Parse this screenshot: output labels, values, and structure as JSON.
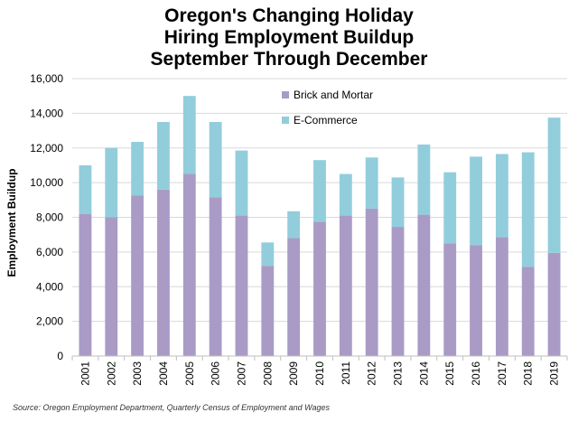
{
  "title_lines": [
    "Oregon's Changing Holiday",
    "Hiring Employment Buildup",
    "September Through December"
  ],
  "source": "Source: Oregon Employment Department, Quarterly Census of Employment and Wages",
  "colors": {
    "brick": "#a99bc6",
    "ecommerce": "#92cddc",
    "grid": "#d9d9d9",
    "axis": "#bfbfbf"
  },
  "chart_data": {
    "type": "bar",
    "stacked": true,
    "title": "Oregon's Changing Holiday Hiring Employment Buildup September Through December",
    "xlabel": "",
    "ylabel": "Employment Buildup",
    "ylim": [
      0,
      16000
    ],
    "yticks": [
      0,
      2000,
      4000,
      6000,
      8000,
      10000,
      12000,
      14000,
      16000
    ],
    "ytick_labels": [
      "0",
      "2,000",
      "4,000",
      "6,000",
      "8,000",
      "10,000",
      "12,000",
      "14,000",
      "16,000"
    ],
    "grid": true,
    "legend_position": "top-center",
    "categories": [
      "2001",
      "2002",
      "2003",
      "2004",
      "2005",
      "2006",
      "2007",
      "2008",
      "2009",
      "2010",
      "2011",
      "2012",
      "2013",
      "2014",
      "2015",
      "2016",
      "2017",
      "2018",
      "2019"
    ],
    "series": [
      {
        "name": "Brick and Mortar",
        "values": [
          8200,
          8000,
          9250,
          9600,
          10500,
          9150,
          8100,
          5200,
          6800,
          7750,
          8100,
          8500,
          7450,
          8150,
          6500,
          6400,
          6850,
          5150,
          5950
        ]
      },
      {
        "name": "E-Commerce",
        "values": [
          2800,
          4000,
          3100,
          3900,
          4500,
          4350,
          3750,
          1350,
          1550,
          3550,
          2400,
          2950,
          2850,
          4050,
          4100,
          5100,
          4800,
          6600,
          7800
        ]
      }
    ]
  }
}
